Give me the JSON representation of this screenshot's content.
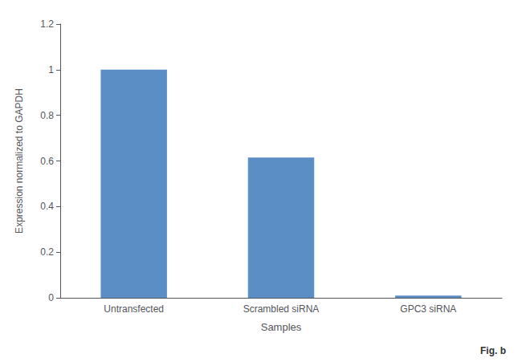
{
  "chart_data": {
    "type": "bar",
    "categories": [
      "Untransfected",
      "Scrambled siRNA",
      "GPC3 siRNA"
    ],
    "values": [
      1.0,
      0.615,
      0.01
    ],
    "color": "#5b8ec4",
    "xlabel": "Samples",
    "ylabel": "Expression normalized to GAPDH",
    "ylim": [
      0,
      1.2
    ],
    "yticks": [
      0,
      0.2,
      0.4,
      0.6,
      0.8,
      1,
      1.2
    ],
    "grid": false,
    "annotations": [
      "Fig. b"
    ]
  }
}
